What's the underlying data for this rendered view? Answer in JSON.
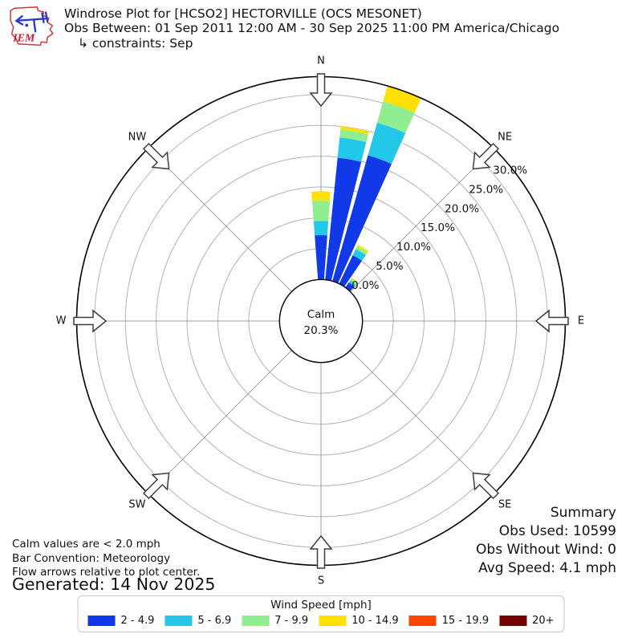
{
  "header": {
    "logo_text": "IEM",
    "title": "Windrose Plot for [HCSO2] HECTORVILLE (OCS MESONET)",
    "subtitle": "Obs Between: 01 Sep 2011 12:00 AM - 30 Sep 2025 11:00 PM America/Chicago",
    "constraints": "↳ constraints: Sep"
  },
  "plot": {
    "compass_labels": [
      "N",
      "NE",
      "E",
      "SE",
      "S",
      "SW",
      "W",
      "NW"
    ],
    "radial_tick_labels": [
      "0.0%",
      "5.0%",
      "10.0%",
      "15.0%",
      "20.0%",
      "25.0%",
      "30.0%"
    ],
    "calm_label": "Calm",
    "calm_value": "20.3%"
  },
  "chart_data": {
    "type": "bar",
    "subtype": "windrose_polar_stacked",
    "title": "Windrose Plot for [HCSO2] HECTORVILLE (OCS MESONET)",
    "units": "percent frequency by wind direction",
    "direction_deg": [
      0,
      10,
      20,
      30,
      40
    ],
    "series": [
      {
        "name": "2 - 4.9",
        "color": "#1239E8",
        "values": [
          7.2,
          19.9,
          21.2,
          5.1,
          1.0
        ]
      },
      {
        "name": "5 - 6.9",
        "color": "#23C8E8",
        "values": [
          2.3,
          3.3,
          5.5,
          1.1,
          0.4
        ]
      },
      {
        "name": "7 - 9.9",
        "color": "#90EE90",
        "values": [
          3.3,
          1.3,
          3.6,
          0.5,
          0.3
        ]
      },
      {
        "name": "10 - 14.9",
        "color": "#FFE000",
        "values": [
          1.5,
          0.5,
          2.6,
          0.3,
          0.2
        ]
      },
      {
        "name": "15 - 19.9",
        "color": "#FF4500",
        "values": [
          0,
          0,
          0,
          0,
          0
        ]
      },
      {
        "name": "20+",
        "color": "#770000",
        "values": [
          0,
          0,
          0,
          0,
          0
        ]
      }
    ],
    "calm_percent": 20.3,
    "radial_ticks_percent": [
      0,
      5,
      10,
      15,
      20,
      25,
      30
    ],
    "rmax_percent": 32.9,
    "bar_width_deg": 8.4,
    "grid": true,
    "legend_position": "bottom"
  },
  "summary": {
    "lines": [
      "Summary",
      "Obs Used: 10599",
      "Obs Without Wind: 0",
      "Avg Speed: 4.1 mph"
    ]
  },
  "notes": {
    "lines": [
      "Calm values are < 2.0 mph",
      "Bar Convention: Meteorology",
      "Flow arrows relative to plot center."
    ],
    "generated": "Generated: 14 Nov 2025"
  },
  "legend": {
    "title": "Wind Speed [mph]",
    "bins": [
      {
        "label": "2 - 4.9",
        "color": "#1239E8"
      },
      {
        "label": "5 - 6.9",
        "color": "#23C8E8"
      },
      {
        "label": "7 - 9.9",
        "color": "#90EE90"
      },
      {
        "label": "10 - 14.9",
        "color": "#FFE000"
      },
      {
        "label": "15 - 19.9",
        "color": "#FF4500"
      },
      {
        "label": "20+",
        "color": "#770000"
      }
    ]
  }
}
